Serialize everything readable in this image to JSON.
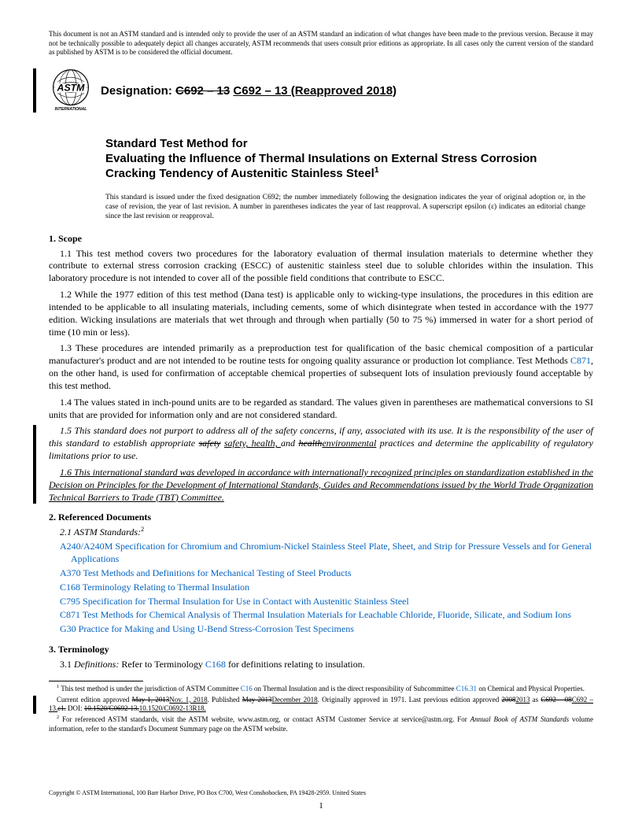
{
  "disclaimer": "This document is not an ASTM standard and is intended only to provide the user of an ASTM standard an indication of what changes have been made to the previous version. Because it may not be technically possible to adequately depict all changes accurately, ASTM recommends that users consult prior editions as appropriate. In all cases only the current version of the standard as published by ASTM is to be considered the official document.",
  "logo": {
    "name": "astm-logo",
    "text_top": "ASTM",
    "text_bottom": "INTERNATIONAL"
  },
  "designation": {
    "label": "Designation:",
    "old": "C692 – 13",
    "new": "C692 – 13 (Reapproved 2018)"
  },
  "title": {
    "line1": "Standard Test Method for",
    "line2": "Evaluating the Influence of Thermal Insulations on External Stress Corrosion Cracking Tendency of Austenitic Stainless Steel",
    "sup": "1"
  },
  "issuance": "This standard is issued under the fixed designation C692; the number immediately following the designation indicates the year of original adoption or, in the case of revision, the year of last revision. A number in parentheses indicates the year of last reapproval. A superscript epsilon (ε) indicates an editorial change since the last revision or reapproval.",
  "sections": {
    "scope": {
      "head": "1.  Scope",
      "p11": "1.1  This test method covers two procedures for the laboratory evaluation of thermal insulation materials to determine whether they contribute to external stress corrosion cracking (ESCC) of austenitic stainless steel due to soluble chlorides within the insulation. This laboratory procedure is not intended to cover all of the possible field conditions that contribute to ESCC.",
      "p12": "1.2  While the 1977 edition of this test method (Dana test) is applicable only to wicking-type insulations, the procedures in this edition are intended to be applicable to all insulating materials, including cements, some of which disintegrate when tested in accordance with the 1977 edition. Wicking insulations are materials that wet through and through when partially (50 to 75 %) immersed in water for a short period of time (10 min or less).",
      "p13a": "1.3  These procedures are intended primarily as a preproduction test for qualification of the basic chemical composition of a particular manufacturer's product and are not intended to be routine tests for ongoing quality assurance or production lot compliance. Test Methods ",
      "p13_link": "C871",
      "p13b": ", on the other hand, is used for confirmation of acceptable chemical properties of subsequent lots of insulation previously found acceptable by this test method.",
      "p14": "1.4  The values stated in inch-pound units are to be regarded as standard. The values given in parentheses are mathematical conversions to SI units that are provided for information only and are not considered standard.",
      "p15a": "1.5  This standard does not purport to address all of the safety concerns, if any, associated with its use. It is the responsibility of the user of this standard to establish appropriate ",
      "p15_strike1": "safety",
      "p15_ins1": "safety, health, ",
      "p15_mid": "and ",
      "p15_strike2": "health",
      "p15_ins2": "environmental",
      "p15b": " practices and determine the applicability of regulatory limitations prior to use.",
      "p16": "1.6 This international standard was developed in accordance with internationally recognized principles on standardization established in the Decision on Principles for the Development of International Standards, Guides and Recommendations issued by the World Trade Organization Technical Barriers to Trade (TBT) Committee."
    },
    "refdocs": {
      "head": "2.  Referenced Documents",
      "sub": "2.1  ASTM Standards:",
      "sup": "2",
      "items": [
        {
          "code": "A240/A240M",
          "text": "Specification for Chromium and Chromium-Nickel Stainless Steel Plate, Sheet, and Strip for Pressure Vessels and for General Applications"
        },
        {
          "code": "A370",
          "text": "Test Methods and Definitions for Mechanical Testing of Steel Products"
        },
        {
          "code": "C168",
          "text": "Terminology Relating to Thermal Insulation"
        },
        {
          "code": "C795",
          "text": "Specification for Thermal Insulation for Use in Contact with Austenitic Stainless Steel"
        },
        {
          "code": "C871",
          "text": "Test Methods for Chemical Analysis of Thermal Insulation Materials for Leachable Chloride, Fluoride, Silicate, and Sodium Ions"
        },
        {
          "code": "G30",
          "text": "Practice for Making and Using U-Bend Stress-Corrosion Test Specimens"
        }
      ]
    },
    "terminology": {
      "head": "3.  Terminology",
      "p31a": "3.1  ",
      "p31_def": "Definitions:",
      "p31b": " Refer to Terminology ",
      "p31_link": "C168",
      "p31c": " for definitions relating to insulation."
    }
  },
  "footnotes": {
    "f1a": " This test method is under the jurisdiction of ASTM Committee ",
    "f1_link1": "C16",
    "f1b": " on Thermal Insulation and is the direct responsibility of Subcommittee ",
    "f1_link2": "C16.31",
    "f1c": " on Chemical and Physical Properties.",
    "f1_line2a": "Current edition approved ",
    "f1_strike1": "May 1, 2013",
    "f1_ins1": "Nov. 1, 2018",
    "f1_line2b": ". Published ",
    "f1_strike2": "May 2013",
    "f1_ins2": "December 2018",
    "f1_line2c": ". Originally approved in 1971. Last previous edition approved ",
    "f1_strike3": "2008",
    "f1_ins3": "2013",
    "f1_line2d": " as ",
    "f1_strike4": "C692 – 08",
    "f1_ins4": "C692 – 13.",
    "f1_strike5": "ε1.",
    "f1_line2e": " DOI: ",
    "f1_strike6": "10.1520/C0692-13.",
    "f1_ins6": "10.1520/C0692-13R18.",
    "f2a": " For referenced ASTM standards, visit the ASTM website, www.astm.org, or contact ASTM Customer Service at service@astm.org. For ",
    "f2_i": "Annual Book of ASTM Standards",
    "f2b": " volume information, refer to the standard's Document Summary page on the ASTM website."
  },
  "copyright": "Copyright © ASTM International, 100 Barr Harbor Drive, PO Box C700, West Conshohocken, PA 19428-2959. United States",
  "page_number": "1",
  "colors": {
    "link": "#0563c1"
  }
}
